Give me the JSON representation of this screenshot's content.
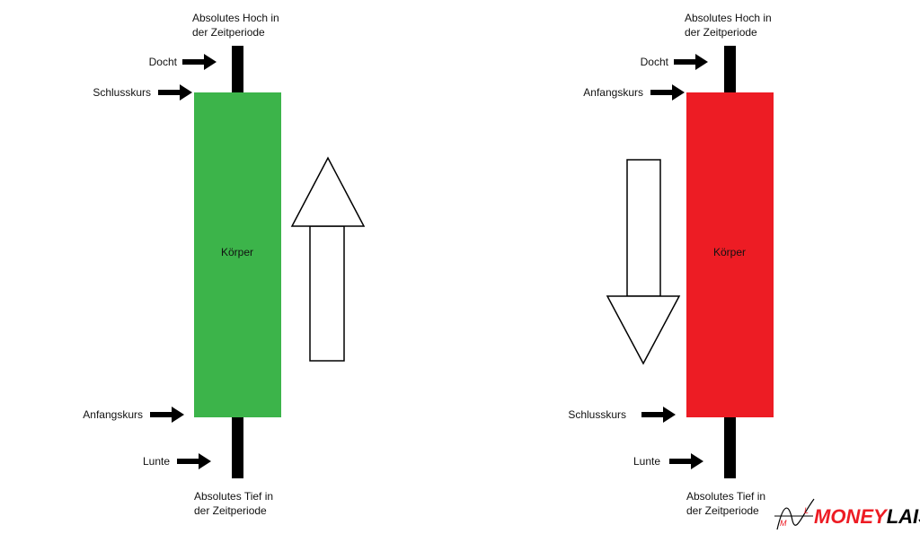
{
  "colors": {
    "bullish": "#3cb44a",
    "bearish": "#ed1c24",
    "wick": "#000000",
    "arrow": "#000000"
  },
  "bullish_candle": {
    "high_label_line1": "Absolutes Hoch in",
    "high_label_line2": "der Zeitperiode",
    "wick_top_label": "Docht",
    "body_top_label": "Schlusskurs",
    "body_label": "Körper",
    "body_bottom_label": "Anfangskurs",
    "wick_bottom_label": "Lunte",
    "low_label_line1": "Absolutes Tief in",
    "low_label_line2": "der Zeitperiode",
    "direction_icon": "up-arrow-outline"
  },
  "bearish_candle": {
    "high_label_line1": "Absolutes Hoch in",
    "high_label_line2": "der Zeitperiode",
    "wick_top_label": "Docht",
    "body_top_label": "Anfangskurs",
    "body_label": "Körper",
    "body_bottom_label": "Schlusskurs",
    "wick_bottom_label": "Lunte",
    "low_label_line1": "Absolutes Tief in",
    "low_label_line2": "der Zeitperiode",
    "direction_icon": "down-arrow-outline"
  },
  "logo": {
    "text_part1": "MONEY",
    "text_part2": "L",
    "text_part3": "AIST"
  }
}
